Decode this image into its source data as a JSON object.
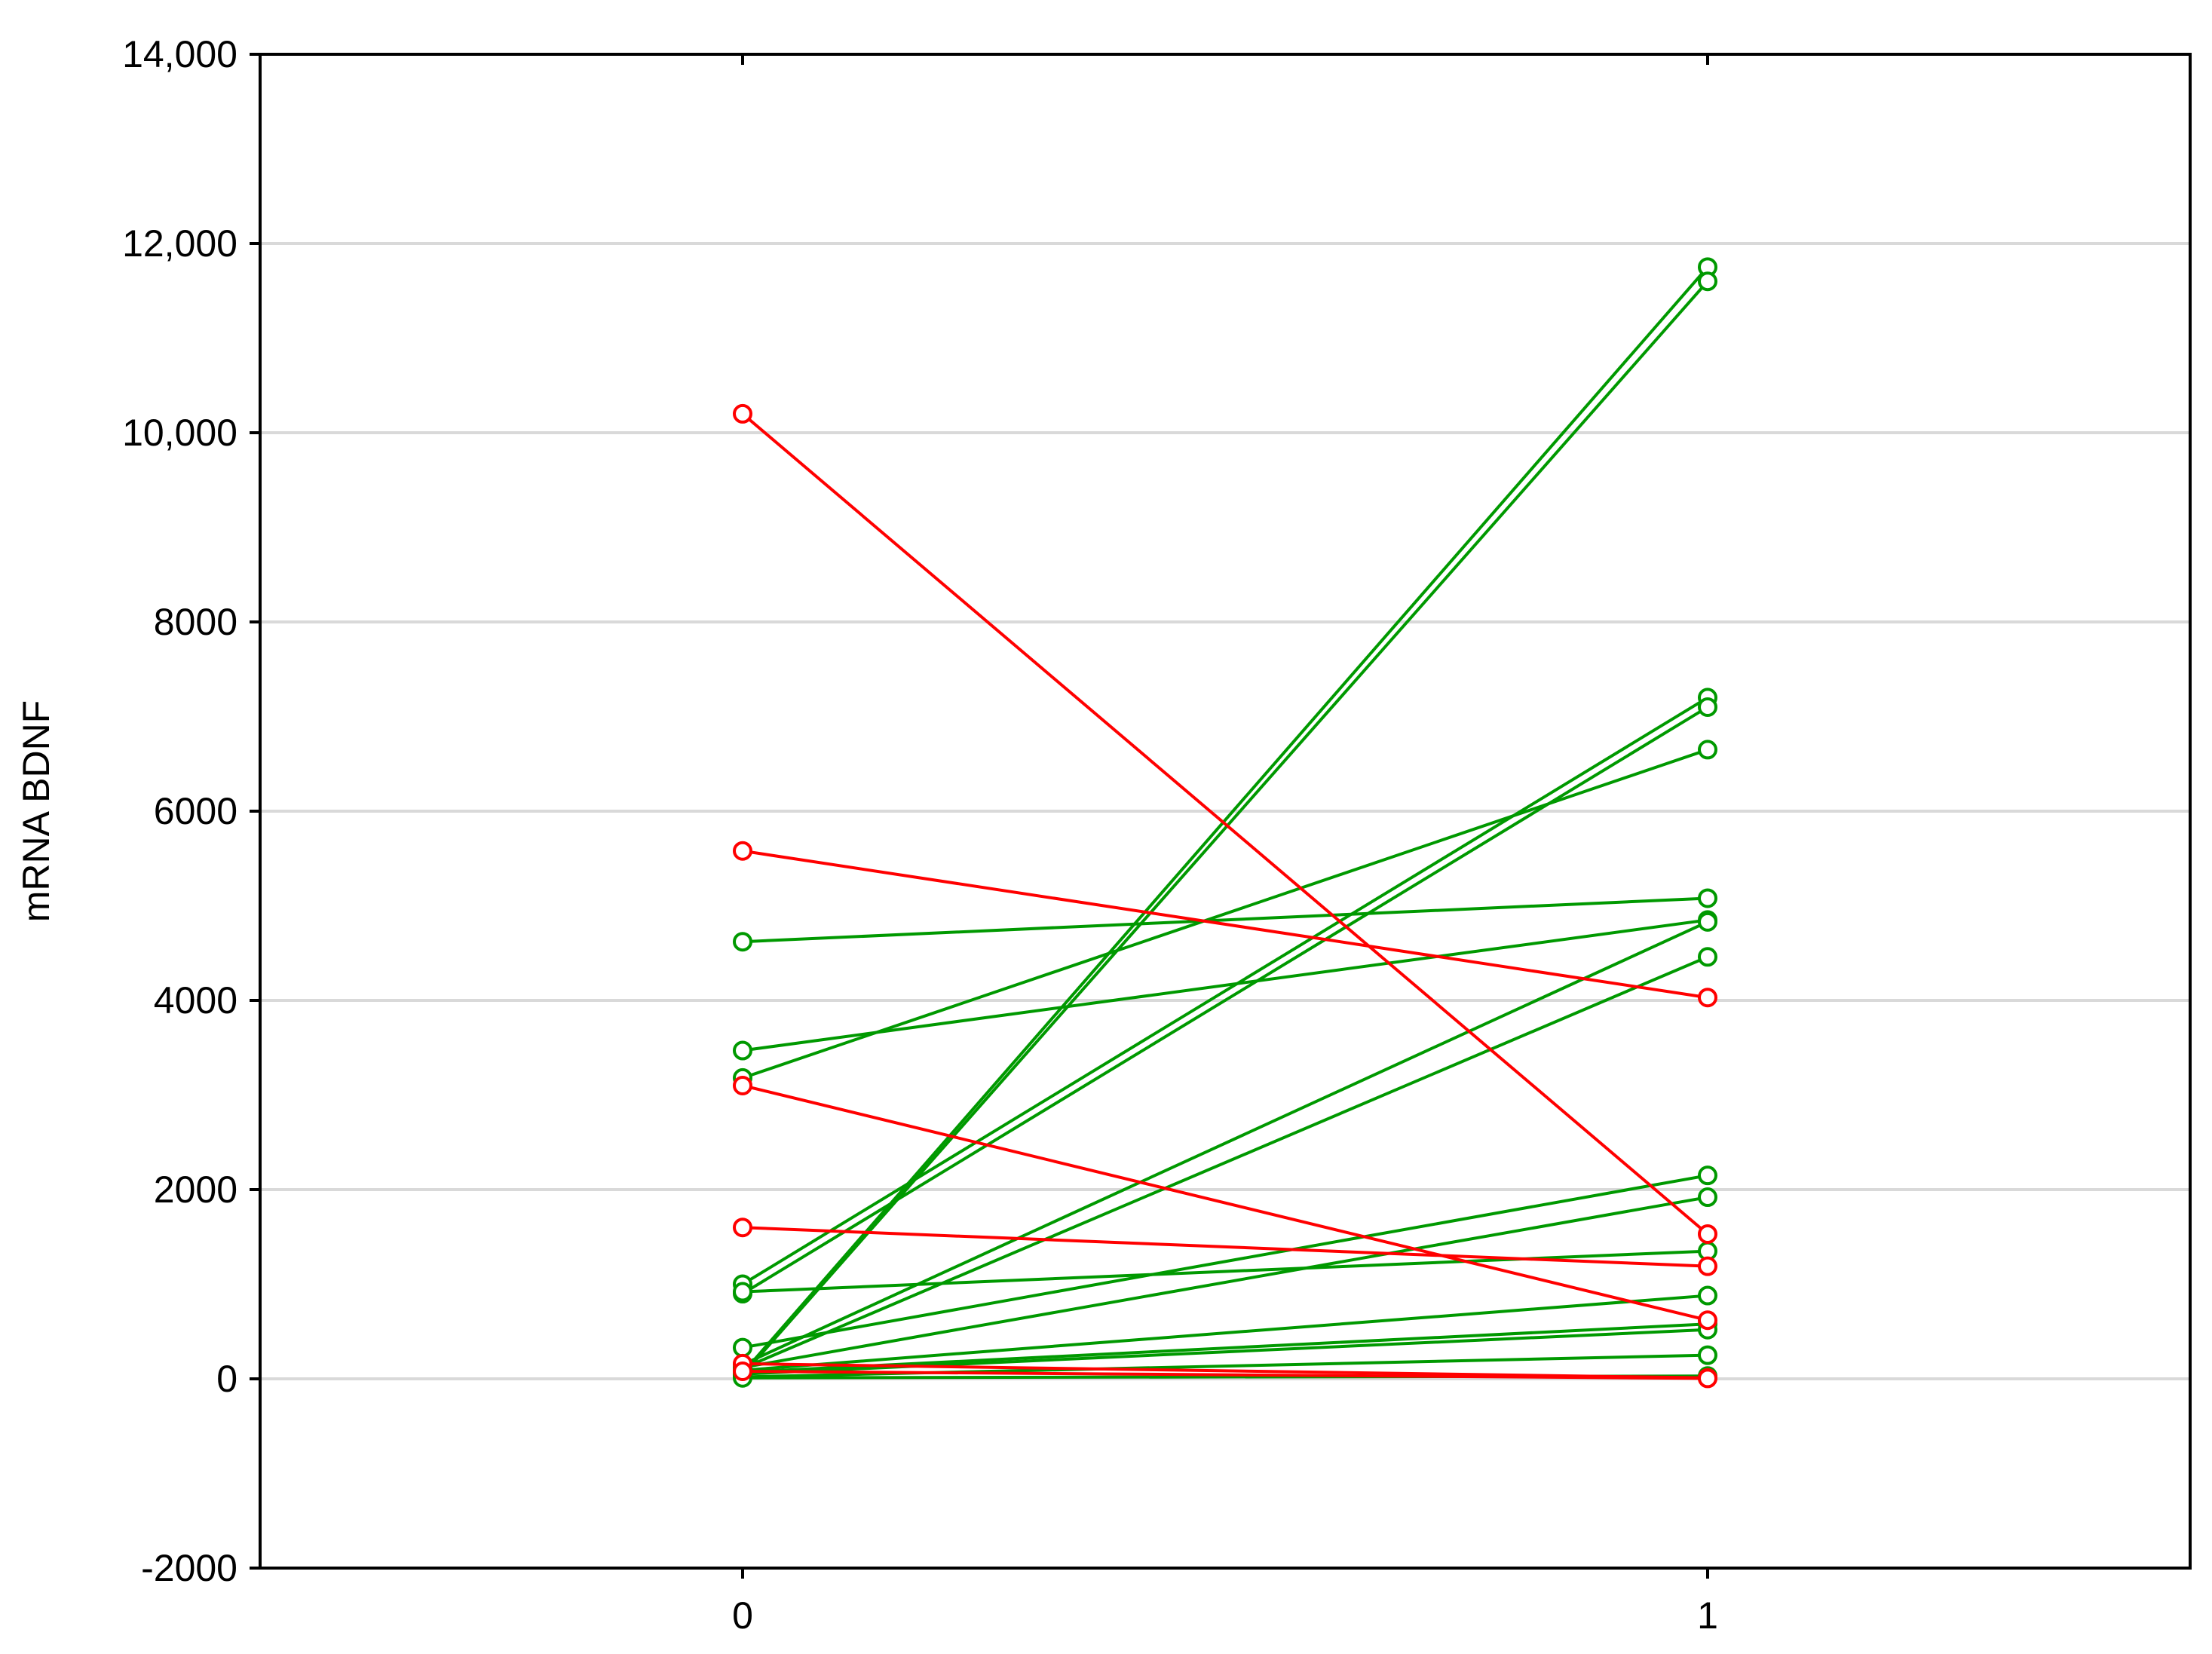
{
  "chart_data": {
    "type": "line",
    "title": "",
    "xlabel": "",
    "ylabel": "mRNA BDNF",
    "x_categories": [
      "0",
      "1"
    ],
    "xlim": [
      -0.5,
      1.5
    ],
    "ylim": [
      -2000,
      14000
    ],
    "yticks": [
      {
        "value": -2000,
        "label": "-2000"
      },
      {
        "value": 0,
        "label": "0"
      },
      {
        "value": 2000,
        "label": "2000"
      },
      {
        "value": 4000,
        "label": "4000"
      },
      {
        "value": 6000,
        "label": "6000"
      },
      {
        "value": 8000,
        "label": "8000"
      },
      {
        "value": 10000,
        "label": "10,000"
      },
      {
        "value": 12000,
        "label": "12,000"
      },
      {
        "value": 14000,
        "label": "14,000"
      }
    ],
    "grid": {
      "horizontal": true,
      "vertical": false
    },
    "legend": "none",
    "marker": "open-circle",
    "colors": {
      "increase": "#009900",
      "decrease": "#ff0000",
      "grid": "#d9d9d9",
      "axis": "#000000"
    },
    "series": [
      {
        "group": "increase",
        "values": [
          60,
          11750
        ]
      },
      {
        "group": "increase",
        "values": [
          40,
          11600
        ]
      },
      {
        "group": "increase",
        "values": [
          1000,
          7200
        ]
      },
      {
        "group": "increase",
        "values": [
          900,
          7100
        ]
      },
      {
        "group": "increase",
        "values": [
          3180,
          6650
        ]
      },
      {
        "group": "increase",
        "values": [
          4620,
          5080
        ]
      },
      {
        "group": "increase",
        "values": [
          3470,
          4850
        ]
      },
      {
        "group": "increase",
        "values": [
          150,
          4830
        ]
      },
      {
        "group": "increase",
        "values": [
          110,
          4460
        ]
      },
      {
        "group": "increase",
        "values": [
          330,
          2150
        ]
      },
      {
        "group": "increase",
        "values": [
          120,
          1920
        ]
      },
      {
        "group": "increase",
        "values": [
          920,
          1350
        ]
      },
      {
        "group": "increase",
        "values": [
          90,
          880
        ]
      },
      {
        "group": "increase",
        "values": [
          70,
          580
        ]
      },
      {
        "group": "increase",
        "values": [
          50,
          520
        ]
      },
      {
        "group": "increase",
        "values": [
          20,
          250
        ]
      },
      {
        "group": "increase",
        "values": [
          10,
          30
        ]
      },
      {
        "group": "decrease",
        "values": [
          10200,
          1530
        ]
      },
      {
        "group": "decrease",
        "values": [
          5580,
          4030
        ]
      },
      {
        "group": "decrease",
        "values": [
          3100,
          620
        ]
      },
      {
        "group": "decrease",
        "values": [
          1600,
          1190
        ]
      },
      {
        "group": "decrease",
        "values": [
          160,
          10
        ]
      },
      {
        "group": "decrease",
        "values": [
          80,
          5
        ]
      }
    ]
  }
}
